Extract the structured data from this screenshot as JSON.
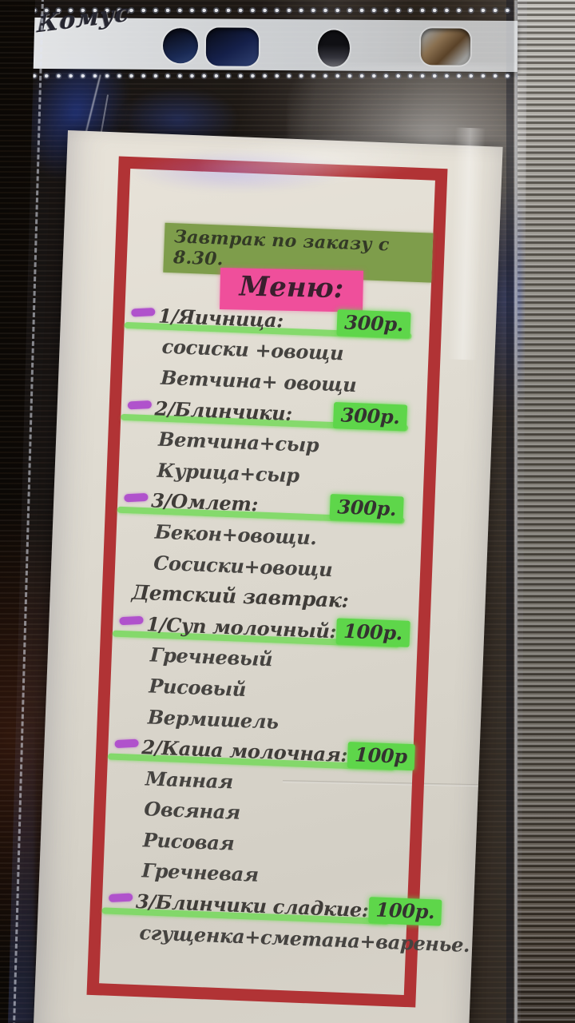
{
  "sleeve": {
    "brand_logo": "Комус"
  },
  "menu": {
    "header_note": "Завтрак по заказу с 8.30.",
    "title": "Меню:",
    "items": [
      {
        "type": "item",
        "name": "1/Яичница:",
        "price": "300р."
      },
      {
        "type": "sub",
        "name": "сосиски +овощи"
      },
      {
        "type": "sub",
        "name": "Ветчина+ овощи"
      },
      {
        "type": "item",
        "name": "2/Блинчики:",
        "price": "300р."
      },
      {
        "type": "sub",
        "name": "Ветчина+сыр"
      },
      {
        "type": "sub",
        "name": "Курица+сыр"
      },
      {
        "type": "item",
        "name": "3/Омлет:",
        "price": "300р."
      },
      {
        "type": "sub",
        "name": "Бекон+овощи."
      },
      {
        "type": "sub",
        "name": "Сосиски+овощи"
      },
      {
        "type": "label",
        "name": "Детский завтрак:"
      },
      {
        "type": "item",
        "name": "1/Суп молочный:",
        "price": "100р."
      },
      {
        "type": "sub",
        "name": "Гречневый"
      },
      {
        "type": "sub",
        "name": "Рисовый"
      },
      {
        "type": "sub",
        "name": "Вермишель"
      },
      {
        "type": "item",
        "name": "2/Каша молочная:",
        "price": "100р"
      },
      {
        "type": "sub",
        "name": "Манная"
      },
      {
        "type": "sub",
        "name": "Овсяная"
      },
      {
        "type": "sub",
        "name": "Рисовая"
      },
      {
        "type": "sub",
        "name": "Гречневая"
      },
      {
        "type": "item",
        "name": "3/Блинчики сладкие:",
        "price": "100р."
      },
      {
        "type": "sub",
        "name": "сгущенка+сметана+варенье."
      }
    ]
  },
  "colors": {
    "red_frame": "#b13335",
    "header_green": "#7e9d4b",
    "highlight_pink": "#ef4f9b",
    "highlight_green": "#5ed64a",
    "underline_green": "rgba(110,218,82,0.8)",
    "marker_purple": "#b052cc",
    "text": "#3f3c38"
  }
}
